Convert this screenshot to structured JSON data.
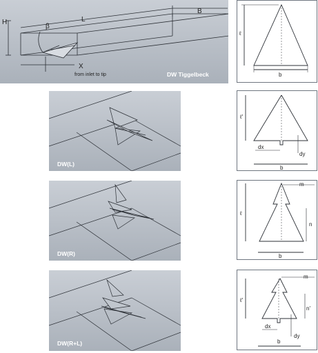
{
  "main_panel": {
    "title": "DW Tiggelbeck",
    "dims": {
      "H": "H",
      "beta": "β",
      "L": "L",
      "B": "B",
      "X": "X"
    },
    "caption": "from inlet to tip"
  },
  "panels": [
    {
      "title": "DW(L)"
    },
    {
      "title": "DW(R)"
    },
    {
      "title": "DW(R+L)"
    }
  ],
  "side_views": [
    {
      "labels": {
        "l": "ℓ",
        "b": "b"
      }
    },
    {
      "labels": {
        "l": "ℓ'",
        "b": "b",
        "dx": "dx",
        "dy": "dy"
      }
    },
    {
      "labels": {
        "l": "ℓ",
        "b": "b",
        "m": "m",
        "n": "n"
      }
    },
    {
      "labels": {
        "l": "ℓ'",
        "b": "b",
        "m": "m",
        "n": "n'",
        "dx": "dx",
        "dy": "dy"
      }
    }
  ],
  "colors": {
    "panel_bg": "#b6bcc4",
    "title_text": "#ffffff",
    "line": "#2b2f35"
  }
}
